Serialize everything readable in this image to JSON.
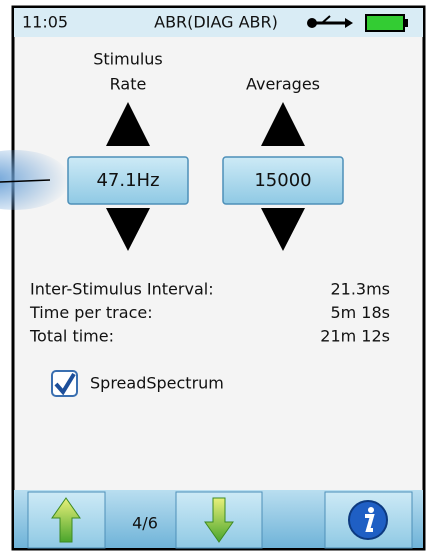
{
  "status": {
    "time": "11:05",
    "title": "ABR(DIAG ABR)"
  },
  "controls": [
    {
      "label_lines": [
        "Stimulus",
        "Rate"
      ],
      "value": "47.1Hz"
    },
    {
      "label_lines": [
        "Averages"
      ],
      "value": "15000"
    }
  ],
  "info": [
    {
      "label": "Inter-Stimulus Interval:",
      "value": "21.3ms"
    },
    {
      "label": "Time per trace:",
      "value": "5m 18s"
    },
    {
      "label": "Total time:",
      "value": "21m 12s"
    }
  ],
  "checkbox": {
    "label": "SpreadSpectrum",
    "checked": true
  },
  "footer": {
    "page": "4/6"
  }
}
